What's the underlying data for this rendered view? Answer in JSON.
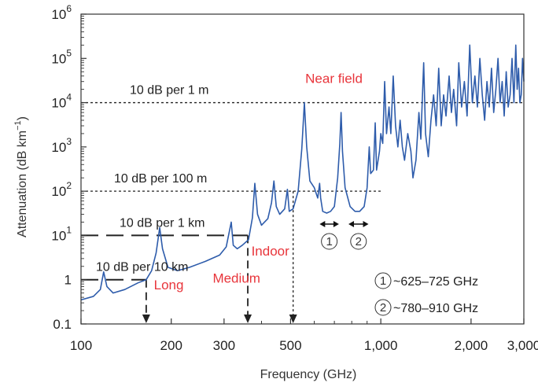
{
  "chart_data": {
    "type": "line",
    "title": "",
    "xlabel": "Frequency (GHz)",
    "ylabel": "Attenuation  (dB km",
    "ylabel_exponent": "−1",
    "ylabel_close": ")",
    "x_scale": "log",
    "y_scale": "log",
    "xlim": [
      100,
      3000
    ],
    "ylim": [
      0.1,
      1000000
    ],
    "x_ticks": [
      {
        "value": 100,
        "label": "100"
      },
      {
        "value": 200,
        "label": "200"
      },
      {
        "value": 300,
        "label": "300"
      },
      {
        "value": 500,
        "label": "500"
      },
      {
        "value": 1000,
        "label": "1,000"
      },
      {
        "value": 2000,
        "label": "2,000"
      },
      {
        "value": 3000,
        "label": "3,000"
      }
    ],
    "y_ticks": [
      {
        "value": 0.1,
        "label": "0.1"
      },
      {
        "value": 1,
        "label": "1"
      },
      {
        "value": 10,
        "base": "10",
        "exp": "1"
      },
      {
        "value": 100,
        "base": "10",
        "exp": "2"
      },
      {
        "value": 1000,
        "base": "10",
        "exp": "3"
      },
      {
        "value": 10000,
        "base": "10",
        "exp": "4"
      },
      {
        "value": 100000,
        "base": "10",
        "exp": "5"
      },
      {
        "value": 1000000,
        "base": "10",
        "exp": "6"
      }
    ],
    "grid": false,
    "series": [
      {
        "color": "#2e5cab",
        "points": [
          [
            100,
            0.35
          ],
          [
            110,
            0.42
          ],
          [
            116,
            0.6
          ],
          [
            119,
            1.5
          ],
          [
            122,
            0.7
          ],
          [
            128,
            0.5
          ],
          [
            140,
            0.6
          ],
          [
            155,
            0.85
          ],
          [
            165,
            1.0
          ],
          [
            172,
            1.6
          ],
          [
            178,
            4.0
          ],
          [
            183,
            15
          ],
          [
            187,
            5.0
          ],
          [
            195,
            1.9
          ],
          [
            210,
            1.6
          ],
          [
            230,
            1.9
          ],
          [
            260,
            2.6
          ],
          [
            290,
            3.6
          ],
          [
            305,
            5.5
          ],
          [
            317,
            20
          ],
          [
            322,
            6.0
          ],
          [
            332,
            5.0
          ],
          [
            345,
            6.0
          ],
          [
            362,
            8.0
          ],
          [
            373,
            25
          ],
          [
            380,
            150
          ],
          [
            388,
            30
          ],
          [
            400,
            17
          ],
          [
            420,
            24
          ],
          [
            432,
            55
          ],
          [
            440,
            170
          ],
          [
            448,
            45
          ],
          [
            460,
            30
          ],
          [
            478,
            40
          ],
          [
            488,
            110
          ],
          [
            495,
            35
          ],
          [
            510,
            40
          ],
          [
            530,
            100
          ],
          [
            545,
            900
          ],
          [
            556,
            10000
          ],
          [
            566,
            1000
          ],
          [
            580,
            170
          ],
          [
            600,
            120
          ],
          [
            616,
            70
          ],
          [
            625,
            150
          ],
          [
            630,
            70
          ],
          [
            640,
            35
          ],
          [
            660,
            32
          ],
          [
            680,
            35
          ],
          [
            700,
            45
          ],
          [
            718,
            200
          ],
          [
            730,
            1200
          ],
          [
            737,
            6000
          ],
          [
            745,
            800
          ],
          [
            760,
            120
          ],
          [
            790,
            45
          ],
          [
            820,
            35
          ],
          [
            850,
            35
          ],
          [
            880,
            45
          ],
          [
            900,
            120
          ],
          [
            915,
            1000
          ],
          [
            925,
            250
          ],
          [
            945,
            300
          ],
          [
            958,
            3500
          ],
          [
            968,
            300
          ],
          [
            990,
            800
          ],
          [
            1000,
            2000
          ],
          [
            1015,
            1200
          ],
          [
            1030,
            30000
          ],
          [
            1045,
            2000
          ],
          [
            1065,
            8000
          ],
          [
            1080,
            2000
          ],
          [
            1100,
            40000
          ],
          [
            1120,
            3000
          ],
          [
            1140,
            1000
          ],
          [
            1160,
            4000
          ],
          [
            1180,
            1000
          ],
          [
            1200,
            500
          ],
          [
            1230,
            2000
          ],
          [
            1260,
            800
          ],
          [
            1280,
            200
          ],
          [
            1310,
            500
          ],
          [
            1340,
            6000
          ],
          [
            1360,
            1500
          ],
          [
            1390,
            80000
          ],
          [
            1410,
            2000
          ],
          [
            1440,
            600
          ],
          [
            1470,
            4000
          ],
          [
            1500,
            15000
          ],
          [
            1530,
            3000
          ],
          [
            1560,
            60000
          ],
          [
            1590,
            3000
          ],
          [
            1620,
            15000
          ],
          [
            1650,
            5000
          ],
          [
            1690,
            40000
          ],
          [
            1720,
            6000
          ],
          [
            1750,
            20000
          ],
          [
            1790,
            3000
          ],
          [
            1820,
            80000
          ],
          [
            1860,
            8000
          ],
          [
            1900,
            30000
          ],
          [
            1940,
            5000
          ],
          [
            1980,
            200000
          ],
          [
            2020,
            10000
          ],
          [
            2060,
            40000
          ],
          [
            2100,
            8000
          ],
          [
            2140,
            100000
          ],
          [
            2180,
            15000
          ],
          [
            2220,
            4000
          ],
          [
            2260,
            30000
          ],
          [
            2300,
            8000
          ],
          [
            2340,
            60000
          ],
          [
            2380,
            6000
          ],
          [
            2420,
            20000
          ],
          [
            2460,
            100000
          ],
          [
            2500,
            10000
          ],
          [
            2540,
            30000
          ],
          [
            2580,
            5000
          ],
          [
            2620,
            50000
          ],
          [
            2660,
            8000
          ],
          [
            2700,
            15000
          ],
          [
            2740,
            100000
          ],
          [
            2780,
            10000
          ],
          [
            2820,
            200000
          ],
          [
            2850,
            20000
          ],
          [
            2880,
            60000
          ],
          [
            2910,
            10000
          ],
          [
            2940,
            15000
          ],
          [
            2970,
            100000
          ],
          [
            3000,
            30000
          ]
        ]
      }
    ],
    "reference_lines": [
      {
        "label": "10 dB per 1 m",
        "y": 10000,
        "x_end": 3000,
        "style": "dotted"
      },
      {
        "label": "10 dB per 100 m",
        "y": 100,
        "x_end": 1000,
        "style": "dotted"
      },
      {
        "label": "10 dB per 1 km",
        "y": 10,
        "x_end": 360,
        "style": "dashed"
      },
      {
        "label": "10 dB per 10 km",
        "y": 1,
        "x_end": 165,
        "style": "dashed"
      }
    ],
    "drop_lines": [
      {
        "x": 165,
        "y_top": 1,
        "style": "dashed"
      },
      {
        "x": 360,
        "y_top": 10,
        "style": "dashed"
      },
      {
        "x": 510,
        "y_top": 100,
        "style": "dotted"
      }
    ],
    "region_labels": [
      {
        "text": "Long",
        "x": 175,
        "y": 0.6
      },
      {
        "text": "Medium",
        "x": 275,
        "y": 0.85
      },
      {
        "text": "Indoor",
        "x": 370,
        "y": 3.5
      },
      {
        "text": "Near field",
        "x": 560,
        "y": 28000
      }
    ],
    "windows": [
      {
        "id": "1",
        "x_range": [
          625,
          725
        ]
      },
      {
        "id": "2",
        "x_range": [
          780,
          910
        ]
      }
    ],
    "legend": [
      {
        "id": "1",
        "text": "~625–725 GHz"
      },
      {
        "id": "2",
        "text": "~780–910 GHz"
      }
    ],
    "legend_position": "bottom-right"
  }
}
